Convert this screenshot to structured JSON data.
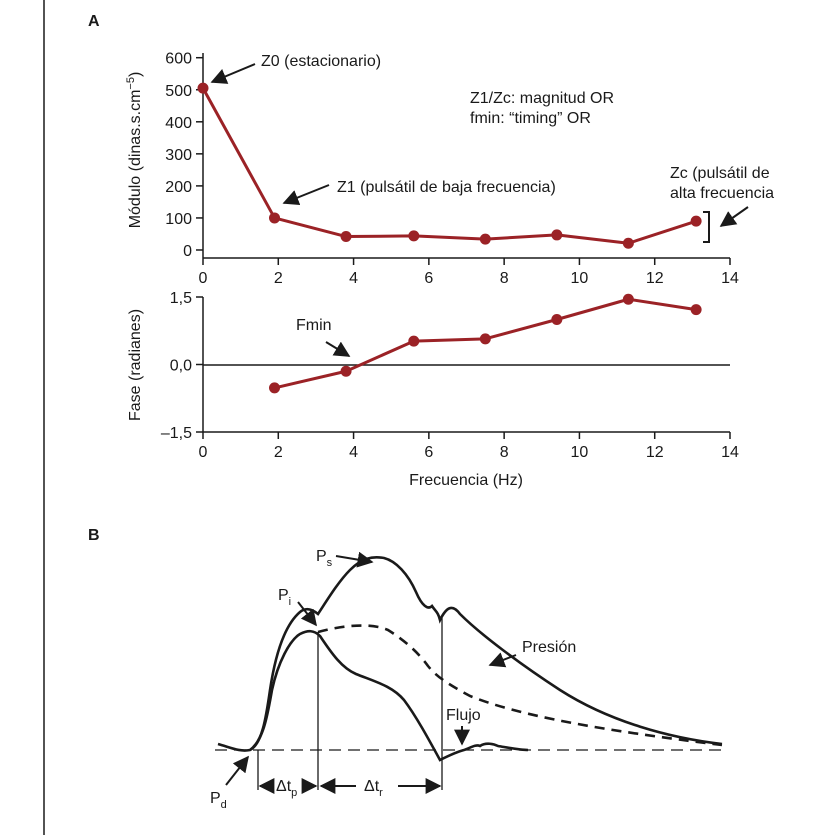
{
  "panels": {
    "a_label": "A",
    "b_label": "B"
  },
  "colors": {
    "series": "#9b2226",
    "ink": "#1a1a1a"
  },
  "chart_data": [
    {
      "type": "line",
      "panel": "A-top",
      "x": [
        0,
        1.9,
        3.8,
        5.6,
        7.5,
        9.4,
        11.3,
        13.1
      ],
      "values": [
        505,
        100,
        42,
        44,
        34,
        47,
        21,
        90
      ],
      "xlim": [
        0,
        14
      ],
      "ylim": [
        -25,
        610
      ],
      "xticks": [
        "0",
        "2",
        "4",
        "6",
        "8",
        "10",
        "12",
        "14"
      ],
      "yticks": [
        "0",
        "100",
        "200",
        "300",
        "400",
        "500",
        "600"
      ],
      "ylabel": "Módulo (dinas.s.cm",
      "ylabel_sup": "−5",
      "ylabel_tail": ")",
      "annotations": {
        "z0": "Z0 (estacionario)",
        "z1": "Z1 (pulsátil de baja frecuencia)",
        "zc_line1": "Zc (pulsátil de",
        "zc_line2": "alta frecuencia",
        "note_line1": "Z1/Zc: magnitud OR",
        "note_line2": "fmin: “timing” OR"
      }
    },
    {
      "type": "line",
      "panel": "A-bottom",
      "x": [
        1.9,
        3.8,
        5.6,
        7.5,
        9.4,
        11.3,
        13.1
      ],
      "values": [
        -0.52,
        -0.15,
        0.52,
        0.57,
        1.0,
        1.45,
        1.22
      ],
      "xlim": [
        0,
        14
      ],
      "ylim": [
        -1.5,
        1.5
      ],
      "xticks": [
        "0",
        "2",
        "4",
        "6",
        "8",
        "10",
        "12",
        "14"
      ],
      "yticks": [
        "–1,5",
        "0,0",
        "1,5"
      ],
      "ytick_values": [
        -1.5,
        0,
        1.5
      ],
      "ylabel": "Fase (radianes)",
      "xlabel": "Frecuencia (Hz)",
      "annotations": {
        "fmin": "Fmin"
      }
    }
  ],
  "waveform": {
    "pressure_label": "Presión",
    "flow_label": "Flujo",
    "ps": {
      "main": "P",
      "sub": "s"
    },
    "pi": {
      "main": "P",
      "sub": "i"
    },
    "pd": {
      "main": "P",
      "sub": "d"
    },
    "dtp": {
      "main": "Δt",
      "sub": "p"
    },
    "dtr": {
      "main": "Δt",
      "sub": "r"
    }
  }
}
